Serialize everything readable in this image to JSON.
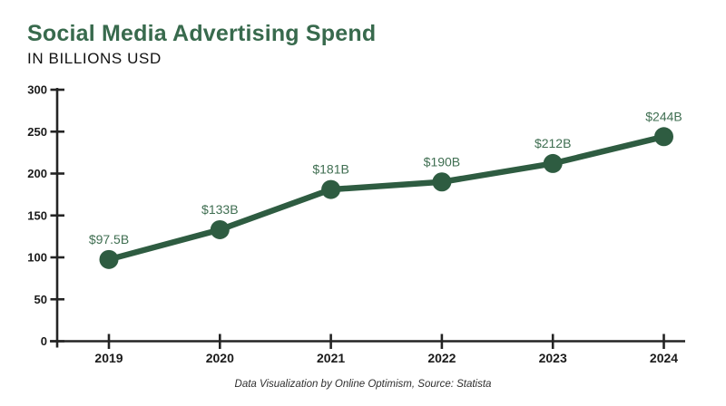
{
  "header": {
    "title": "Social Media Advertising Spend",
    "subtitle": "IN BILLIONS USD"
  },
  "footer": {
    "credit": "Data Visualization by Online Optimism, Source: Statista"
  },
  "colors": {
    "title_green": "#386a4d",
    "line_green": "#2e5c41",
    "value_label_green": "#3f6e51",
    "axis": "#242424",
    "tick_label": "#1a1a1a"
  },
  "chart_data": {
    "type": "line",
    "title": "Social Media Advertising Spend",
    "subtitle": "IN BILLIONS USD",
    "xlabel": "",
    "ylabel": "",
    "categories": [
      "2019",
      "2020",
      "2021",
      "2022",
      "2023",
      "2024"
    ],
    "values": [
      97.5,
      133,
      181,
      190,
      212,
      244
    ],
    "value_labels": [
      "$97.5B",
      "$133B",
      "$181B",
      "$190B",
      "$212B",
      "$244B"
    ],
    "ylim": [
      0,
      300
    ],
    "yticks": [
      0,
      50,
      100,
      150,
      200,
      250,
      300
    ],
    "grid": false,
    "legend": false,
    "marker": "circle"
  }
}
